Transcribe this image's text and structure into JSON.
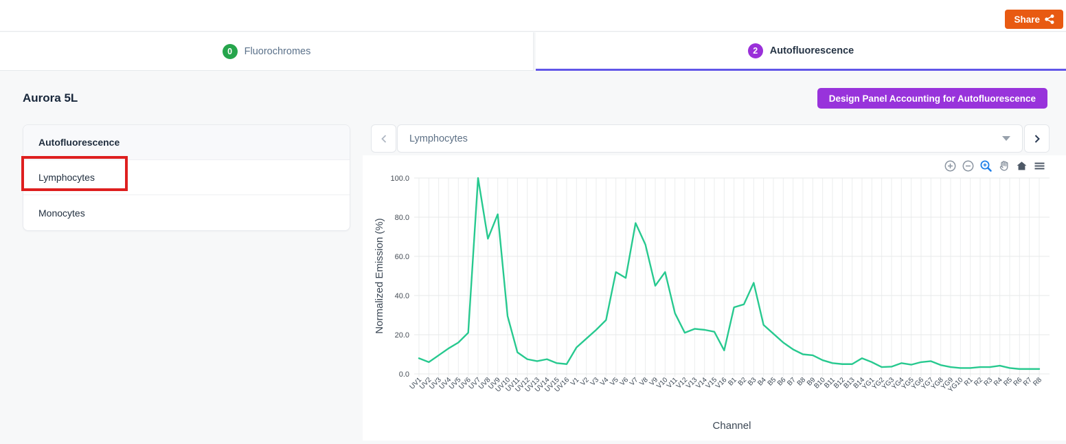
{
  "topbar": {
    "share_label": "Share"
  },
  "tabs": [
    {
      "badge": "0",
      "label": "Fluorochromes",
      "badge_color": "#26a54c",
      "active": false
    },
    {
      "badge": "2",
      "label": "Autofluorescence",
      "badge_color": "#9a30d9",
      "active": true
    }
  ],
  "header": {
    "title": "Aurora 5L",
    "design_button_label": "Design Panel Accounting for Autofluorescence",
    "design_button_color": "#9833db"
  },
  "sidebar": {
    "items": [
      {
        "label": "Autofluorescence",
        "header": true
      },
      {
        "label": "Lymphocytes",
        "annotated": true
      },
      {
        "label": "Monocytes",
        "annotated": false
      }
    ]
  },
  "annotation": {
    "shape": "rectangle",
    "color": "#de1f1f",
    "target": "Lymphocytes"
  },
  "selector": {
    "value": "Lymphocytes",
    "prev_icon": "chevron-left-icon",
    "next_icon": "chevron-right-icon"
  },
  "chart_toolbar": [
    "zoom-in-icon",
    "zoom-out-icon",
    "zoom-select-icon",
    "pan-icon",
    "home-icon",
    "menu-icon"
  ],
  "colors": {
    "share_button": "#e85a12",
    "active_tab_underline": "#6156e8",
    "line": "#27c98f",
    "toolbar_active_icon": "#1f7fe8"
  },
  "chart_data": {
    "type": "line",
    "title": "",
    "xlabel": "Channel",
    "ylabel": "Normalized Emission (%)",
    "ylim": [
      0,
      100
    ],
    "yticks": [
      0,
      20,
      40,
      60,
      80,
      100
    ],
    "ytick_labels": [
      "0.0",
      "20.0",
      "40.0",
      "60.0",
      "80.0",
      "100.0"
    ],
    "grid": true,
    "legend": "none",
    "series_name": "Lymphocytes",
    "line_color": "#27c98f",
    "categories": [
      "UV1",
      "UV2",
      "UV3",
      "UV4",
      "UV5",
      "UV6",
      "UV7",
      "UV8",
      "UV9",
      "UV10",
      "UV11",
      "UV12",
      "UV13",
      "UV14",
      "UV15",
      "UV16",
      "V1",
      "V2",
      "V3",
      "V4",
      "V5",
      "V6",
      "V7",
      "V8",
      "V9",
      "V10",
      "V11",
      "V12",
      "V13",
      "V14",
      "V15",
      "V16",
      "B1",
      "B2",
      "B3",
      "B4",
      "B5",
      "B6",
      "B7",
      "B8",
      "B9",
      "B10",
      "B11",
      "B12",
      "B13",
      "B14",
      "YG1",
      "YG2",
      "YG3",
      "YG4",
      "YG5",
      "YG6",
      "YG7",
      "YG8",
      "YG9",
      "YG10",
      "R1",
      "R2",
      "R3",
      "R4",
      "R5",
      "R6",
      "R7",
      "R8"
    ],
    "values": [
      8,
      6,
      9.5,
      13,
      16,
      21,
      100,
      69,
      81.5,
      29.5,
      11,
      7.5,
      6.5,
      7.5,
      5.5,
      5,
      13.5,
      18,
      22.5,
      27.5,
      52,
      49,
      77,
      66,
      45,
      52,
      31,
      21,
      23,
      22.5,
      21.5,
      12,
      34,
      35.5,
      46.5,
      25,
      20.5,
      16,
      12.5,
      10,
      9.5,
      7,
      5.5,
      5,
      5,
      8,
      6,
      3.5,
      3.7,
      5.5,
      4.7,
      6,
      6.5,
      4.5,
      3.5,
      3,
      3,
      3.5,
      3.5,
      4.2,
      3,
      2.5,
      2.5,
      2.5
    ]
  }
}
